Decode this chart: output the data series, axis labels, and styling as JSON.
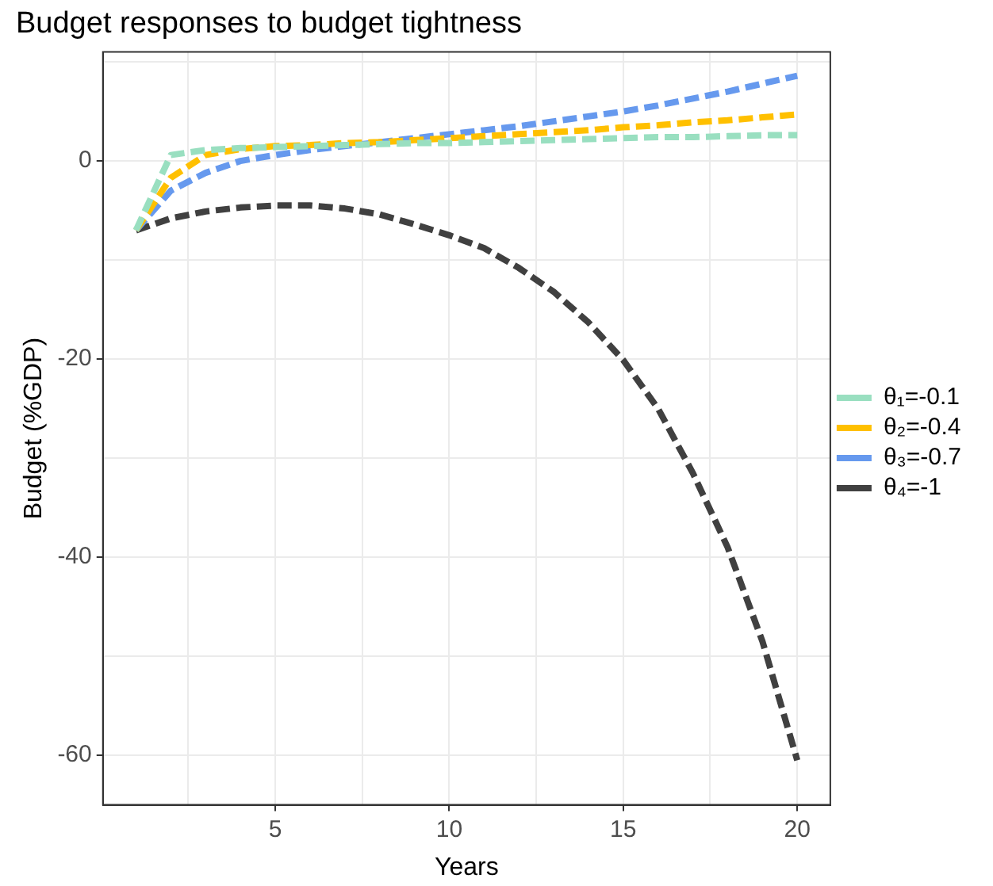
{
  "chart_data": {
    "type": "line",
    "title": "Budget responses to budget tightness",
    "xlabel": "Years",
    "ylabel": "Budget (%GDP)",
    "x": [
      1,
      2,
      3,
      4,
      5,
      6,
      7,
      8,
      9,
      10,
      11,
      12,
      13,
      14,
      15,
      16,
      17,
      18,
      19,
      20
    ],
    "series": [
      {
        "name": "θ₁=-0.1",
        "color": "#99dfc0",
        "values": [
          -7,
          0.6,
          1.1,
          1.3,
          1.4,
          1.5,
          1.6,
          1.7,
          1.8,
          1.8,
          1.9,
          2,
          2.1,
          2.2,
          2.3,
          2.4,
          2.4,
          2.5,
          2.6,
          2.6
        ]
      },
      {
        "name": "θ₂=-0.4",
        "color": "#ffc000",
        "values": [
          -7,
          -1.7,
          0.6,
          1.2,
          1.5,
          1.6,
          1.8,
          1.9,
          2.1,
          2.3,
          2.5,
          2.7,
          2.9,
          3.1,
          3.4,
          3.6,
          3.9,
          4.1,
          4.4,
          4.7
        ]
      },
      {
        "name": "θ₃=-0.7",
        "color": "#6699ee",
        "values": [
          -7,
          -3,
          -1.2,
          0,
          0.6,
          1.1,
          1.5,
          1.9,
          2.3,
          2.7,
          3.1,
          3.5,
          4,
          4.5,
          5,
          5.6,
          6.3,
          7,
          7.8,
          8.6
        ]
      },
      {
        "name": "θ₄=-1",
        "color": "#404040",
        "values": [
          -7,
          -5.8,
          -5.1,
          -4.7,
          -4.5,
          -4.5,
          -4.8,
          -5.4,
          -6.4,
          -7.5,
          -8.8,
          -10.8,
          -13.2,
          -16.3,
          -20.1,
          -25,
          -31.5,
          -39,
          -48.5,
          -60.5
        ]
      }
    ],
    "xlim": [
      0.05,
      20.95
    ],
    "ylim": [
      -65,
      11
    ],
    "xticks": [
      {
        "value": 2.5,
        "label": null
      },
      5,
      {
        "value": 7.5,
        "label": null
      },
      10,
      {
        "value": 12.5,
        "label": null
      },
      15,
      {
        "value": 17.5,
        "label": null
      },
      20
    ],
    "yticks": [
      -60,
      {
        "value": -50,
        "label": null
      },
      -40,
      {
        "value": -30,
        "label": null
      },
      -20,
      {
        "value": -10,
        "label": null
      },
      0,
      {
        "value": 10,
        "label": null
      }
    ],
    "grid": true,
    "legend": "right",
    "line_style": "dashed",
    "marker": "none"
  }
}
